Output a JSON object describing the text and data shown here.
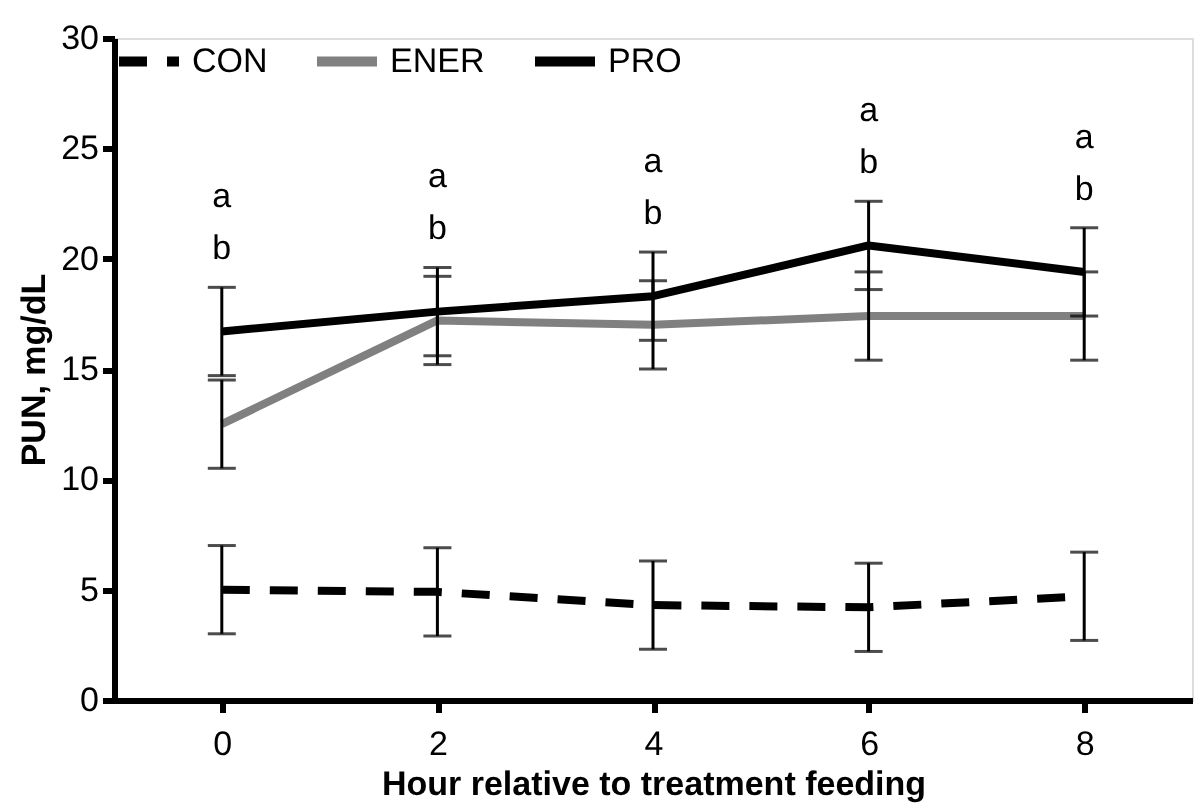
{
  "chart_data": {
    "type": "line",
    "xlabel": "Hour relative to treatment feeding",
    "ylabel": "PUN, mg/dL",
    "categories": [
      "0",
      "2",
      "4",
      "6",
      "8"
    ],
    "series": [
      {
        "name": "CON",
        "color": "#000000",
        "line_style": "dashed",
        "values": [
          5.0,
          4.9,
          4.3,
          4.2,
          4.7
        ],
        "errors": [
          2.0,
          2.0,
          2.0,
          2.0,
          2.0
        ]
      },
      {
        "name": "ENER",
        "color": "#808080",
        "line_style": "solid",
        "values": [
          12.5,
          17.2,
          17.0,
          17.4,
          17.4
        ],
        "errors": [
          2.0,
          2.0,
          2.0,
          2.0,
          2.0
        ]
      },
      {
        "name": "PRO",
        "color": "#000000",
        "line_style": "solid",
        "values": [
          16.7,
          17.6,
          18.3,
          20.6,
          19.4
        ],
        "errors": [
          2.0,
          2.0,
          2.0,
          2.0,
          2.0
        ]
      }
    ],
    "ylim": [
      0,
      30
    ],
    "yticks": [
      0,
      5,
      10,
      15,
      20,
      25,
      30
    ],
    "grid": false,
    "legend": "top",
    "marker": "none",
    "annotations": [
      "a\nb",
      "a\nb",
      "a\nb",
      "a\nb",
      "a\nb"
    ]
  }
}
